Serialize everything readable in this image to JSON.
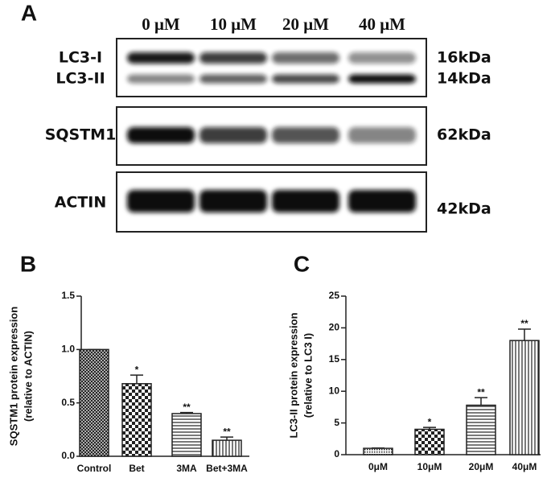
{
  "blot": {
    "label": "A",
    "lanes": [
      "0 μM",
      "10 μM",
      "20 μM",
      "40 μM"
    ],
    "rows": [
      {
        "names": [
          "LC3-I",
          "LC3-II"
        ],
        "sizes": [
          "16kDa",
          "14kDa"
        ]
      },
      {
        "names": [
          "SQSTM1"
        ],
        "sizes": [
          "62kDa"
        ]
      },
      {
        "names": [
          "ACTIN"
        ],
        "sizes": [
          "42kDa"
        ]
      }
    ]
  },
  "chart_data": [
    {
      "type": "bar",
      "label": "B",
      "ylabel": [
        "SQSTM1 protein expression",
        "(relative to ACTIN)"
      ],
      "categories": [
        "Control",
        "Bet",
        "3MA",
        "Bet+3MA"
      ],
      "values": [
        1.0,
        0.68,
        0.4,
        0.15
      ],
      "errors": [
        0,
        0.08,
        0.01,
        0.03
      ],
      "annotations": [
        null,
        "*",
        "**",
        "**"
      ],
      "patterns": [
        "crosshatch",
        "checker",
        "hlines",
        "vlines"
      ],
      "ylim": [
        0,
        1.5
      ],
      "yticks": [
        {
          "value": 0,
          "label": "0.0"
        },
        0.5,
        {
          "value": 1,
          "label": "1.0"
        },
        1.5
      ]
    },
    {
      "type": "bar",
      "label": "C",
      "ylabel": [
        "LC3-II protein expression",
        "(relative to LC3 I)"
      ],
      "categories": [
        "0μM",
        "10μM",
        "20μM",
        "40μM"
      ],
      "values": [
        1.0,
        4.0,
        7.8,
        18.0
      ],
      "errors": [
        0.05,
        0.3,
        1.2,
        1.8
      ],
      "annotations": [
        null,
        "*",
        "**",
        "**"
      ],
      "patterns": [
        "dots",
        "checker",
        "hlines",
        "vlines"
      ],
      "ylim": [
        0,
        25
      ],
      "yticks": [
        0,
        5,
        10,
        15,
        20,
        25
      ]
    }
  ]
}
